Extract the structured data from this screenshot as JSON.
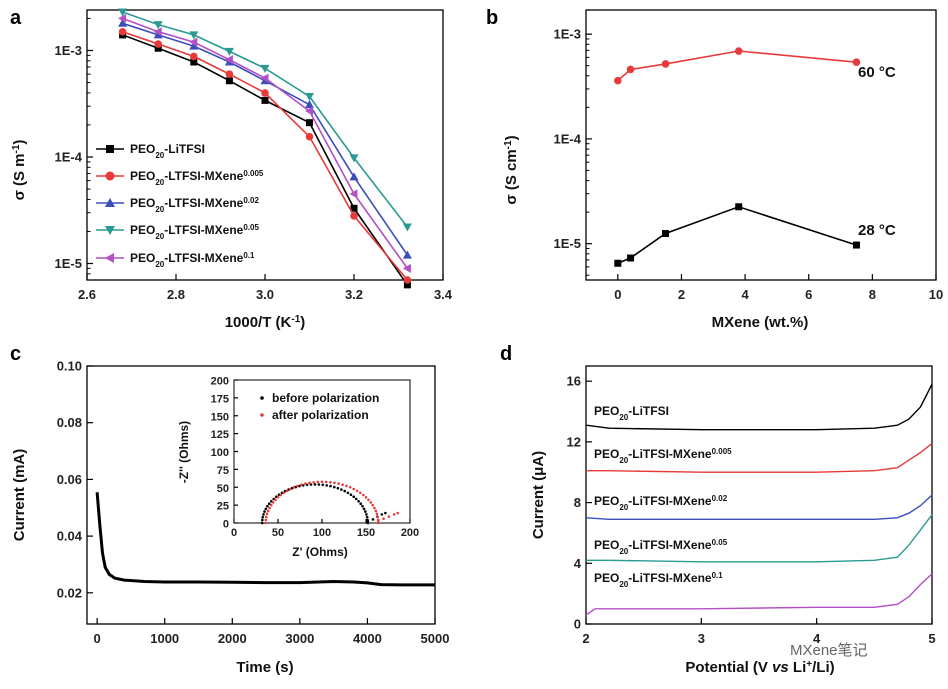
{
  "watermark": "MXene笔记",
  "chart_data": [
    {
      "panel": "a",
      "type": "line",
      "xlabel": "1000/T (K⁻¹)",
      "ylabel": "σ (S m⁻¹)",
      "xlim": [
        2.6,
        3.4
      ],
      "ylim": [
        7e-06,
        0.0024
      ],
      "yscale": "log",
      "xticks": [
        "2.6",
        "2.8",
        "3.0",
        "3.2",
        "3.4"
      ],
      "yticks": [
        "1E-3",
        "1E-4",
        "1E-5"
      ],
      "legend_position": "lower-left",
      "series": [
        {
          "name": "PEO20-LiTFSI",
          "color": "#000000",
          "marker": "square",
          "x": [
            2.68,
            2.76,
            2.84,
            2.92,
            3.0,
            3.1,
            3.2,
            3.32
          ],
          "y": [
            0.0014,
            0.00105,
            0.00078,
            0.00052,
            0.00034,
            0.00021,
            3.3e-05,
            6.3e-06
          ]
        },
        {
          "name": "PEO20-LTFSI-MXene0.005",
          "color": "#e83a3a",
          "marker": "circle",
          "x": [
            2.68,
            2.76,
            2.84,
            2.92,
            3.0,
            3.1,
            3.2,
            3.32
          ],
          "y": [
            0.0015,
            0.00115,
            0.00088,
            0.0006,
            0.0004,
            0.000155,
            2.8e-05,
            7e-06
          ]
        },
        {
          "name": "PEO20-LTFSI-MXene0.02",
          "color": "#3a4fb8",
          "marker": "triangle-up",
          "x": [
            2.68,
            2.76,
            2.84,
            2.92,
            3.0,
            3.1,
            3.2,
            3.32
          ],
          "y": [
            0.0018,
            0.0014,
            0.0011,
            0.00078,
            0.00052,
            0.00031,
            6.5e-05,
            1.2e-05
          ]
        },
        {
          "name": "PEO20-LTFSI-MXene0.05",
          "color": "#2a9b93",
          "marker": "triangle-down",
          "x": [
            2.68,
            2.76,
            2.84,
            2.92,
            3.0,
            3.1,
            3.2,
            3.32
          ],
          "y": [
            0.0023,
            0.00175,
            0.0014,
            0.00098,
            0.00068,
            0.00037,
            9.8e-05,
            2.2e-05
          ]
        },
        {
          "name": "PEO20-LTFSI-MXene0.1",
          "color": "#b44fc6",
          "marker": "triangle-left",
          "x": [
            2.68,
            2.76,
            2.84,
            2.92,
            3.0,
            3.1,
            3.2,
            3.32
          ],
          "y": [
            0.002,
            0.0015,
            0.0012,
            0.00082,
            0.00055,
            0.00027,
            4.5e-05,
            9e-06
          ]
        }
      ]
    },
    {
      "panel": "b",
      "type": "line",
      "xlabel": "MXene (wt.%)",
      "ylabel": "σ (S cm⁻¹)",
      "xlim": [
        -1,
        10
      ],
      "ylim": [
        4.5e-06,
        0.0017
      ],
      "yscale": "log",
      "xticks": [
        "0",
        "2",
        "4",
        "6",
        "8",
        "10"
      ],
      "yticks": [
        "1E-3",
        "1E-4",
        "1E-5"
      ],
      "series": [
        {
          "name": "60 °C",
          "color": "#e83a3a",
          "marker": "circle",
          "x": [
            0,
            0.4,
            1.5,
            3.8,
            7.5
          ],
          "y": [
            0.00036,
            0.00046,
            0.00052,
            0.00069,
            0.00054
          ]
        },
        {
          "name": "28 °C",
          "color": "#000000",
          "marker": "square",
          "x": [
            0,
            0.4,
            1.5,
            3.8,
            7.5
          ],
          "y": [
            6.5e-06,
            7.3e-06,
            1.25e-05,
            2.25e-05,
            9.7e-06
          ]
        }
      ]
    },
    {
      "panel": "c",
      "type": "line",
      "xlabel": "Time (s)",
      "ylabel": "Current (mA)",
      "xlim": [
        -150,
        5000
      ],
      "ylim": [
        0.009,
        0.1
      ],
      "xticks": [
        "0",
        "1000",
        "2000",
        "3000",
        "4000",
        "5000"
      ],
      "yticks": [
        "0.02",
        "0.04",
        "0.06",
        "0.08",
        "0.10"
      ],
      "series": [
        {
          "color": "#000000",
          "x": [
            0,
            40,
            80,
            120,
            180,
            260,
            400,
            700,
            1000,
            1500,
            2000,
            2500,
            3000,
            3500,
            3800,
            4000,
            4200,
            4500,
            5000
          ],
          "y": [
            0.0555,
            0.044,
            0.034,
            0.029,
            0.0265,
            0.0252,
            0.0245,
            0.024,
            0.0238,
            0.0238,
            0.0237,
            0.0236,
            0.0236,
            0.024,
            0.0238,
            0.0235,
            0.0229,
            0.0228,
            0.0228
          ]
        }
      ],
      "inset": {
        "type": "scatter",
        "xlabel": "Z′ (Ohms)",
        "ylabel": "-Z″ (Ohms)",
        "xlim": [
          0,
          200
        ],
        "ylim": [
          0,
          200
        ],
        "xticks": [
          "0",
          "50",
          "100",
          "150",
          "200"
        ],
        "yticks": [
          "0",
          "25",
          "50",
          "75",
          "100",
          "125",
          "150",
          "175",
          "200"
        ],
        "legend": [
          "before polarization",
          "after polarization"
        ],
        "series": [
          {
            "name": "before polarization",
            "color": "#000000",
            "center": 92,
            "radius": 60,
            "tail": [
              [
                152,
                2
              ],
              [
                158,
                5
              ],
              [
                163,
                9
              ],
              [
                168,
                12
              ],
              [
                172,
                14
              ]
            ]
          },
          {
            "name": "after polarization",
            "color": "#e83a3a",
            "center": 100,
            "radius": 64,
            "tail": [
              [
                164,
                3
              ],
              [
                170,
                6
              ],
              [
                176,
                9
              ],
              [
                182,
                12
              ],
              [
                186,
                14
              ]
            ]
          }
        ]
      }
    },
    {
      "panel": "d",
      "type": "line",
      "xlabel": "Potential (V vs Li⁺/Li)",
      "ylabel": "Current (μA)",
      "xlim": [
        2,
        5
      ],
      "ylim": [
        0,
        17
      ],
      "xticks": [
        "2",
        "3",
        "4",
        "5"
      ],
      "yticks": [
        "0",
        "4",
        "8",
        "12",
        "16"
      ],
      "series": [
        {
          "name": "PEO20-LiTFSI",
          "color": "#000000",
          "x": [
            2,
            2.2,
            3,
            4,
            4.5,
            4.7,
            4.8,
            4.9,
            5.0
          ],
          "y": [
            13.1,
            12.9,
            12.8,
            12.8,
            12.9,
            13.1,
            13.5,
            14.3,
            15.8
          ]
        },
        {
          "name": "PEO20-LiTFSI-MXene0.005",
          "color": "#e83a3a",
          "x": [
            2,
            2.2,
            3,
            4,
            4.5,
            4.7,
            4.8,
            4.9,
            5.0
          ],
          "y": [
            10.1,
            10.1,
            10.0,
            10.0,
            10.1,
            10.3,
            10.8,
            11.3,
            11.9
          ]
        },
        {
          "name": "PEO20-LiTFSI-MXene0.02",
          "color": "#3a4fb8",
          "x": [
            2,
            2.2,
            3,
            4,
            4.5,
            4.7,
            4.8,
            4.9,
            5.0
          ],
          "y": [
            7.0,
            6.9,
            6.9,
            6.9,
            6.9,
            7.0,
            7.3,
            7.8,
            8.5
          ]
        },
        {
          "name": "PEO20-LiTFSI-MXene0.05",
          "color": "#2a9b93",
          "x": [
            2,
            2.2,
            3,
            4,
            4.5,
            4.7,
            4.8,
            4.9,
            5.0
          ],
          "y": [
            4.2,
            4.2,
            4.1,
            4.1,
            4.2,
            4.4,
            5.2,
            6.2,
            7.2
          ]
        },
        {
          "name": "PEO20-LiTFSI-MXene0.1",
          "color": "#b44fc6",
          "x": [
            2,
            2.08,
            2.2,
            3,
            4,
            4.5,
            4.7,
            4.8,
            4.9,
            5.0
          ],
          "y": [
            0.6,
            1.0,
            1.0,
            1.0,
            1.1,
            1.1,
            1.3,
            1.8,
            2.6,
            3.3
          ]
        }
      ]
    }
  ]
}
